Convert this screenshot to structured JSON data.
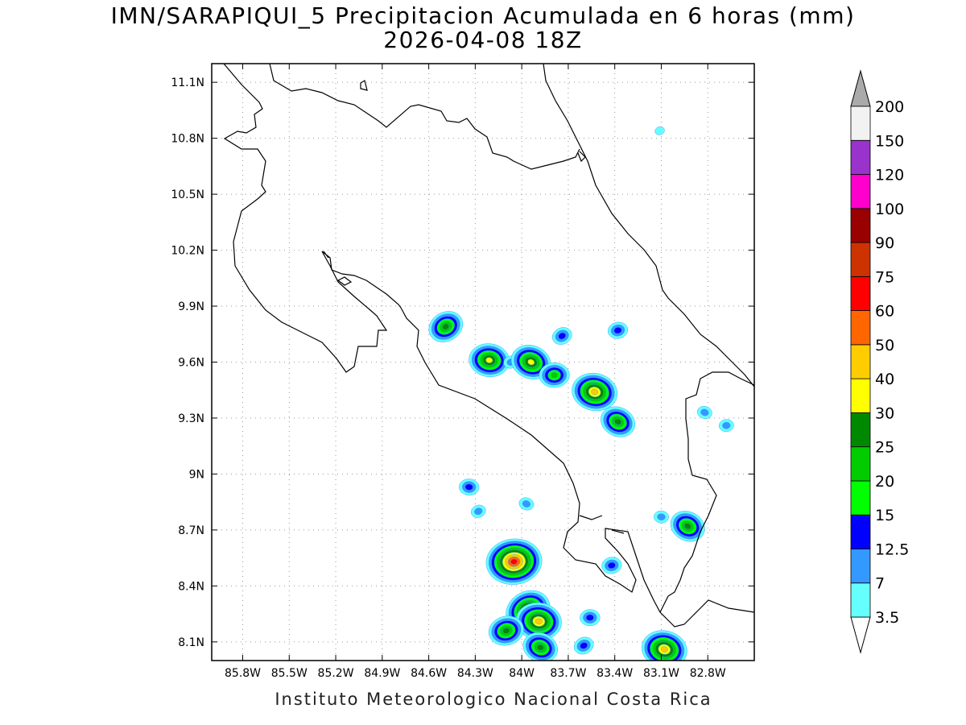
{
  "title": {
    "line1": "IMN/SARAPIQUI_5 Precipitacion Acumulada en 6 horas (mm)",
    "line2": "2026-04-08 18Z"
  },
  "footer": "Instituto Meteorologico Nacional Costa Rica",
  "map": {
    "lon_range": [
      -86.0,
      -82.5
    ],
    "lat_range": [
      8.0,
      11.2
    ],
    "lon_ticks": [
      {
        "value": -85.8,
        "label": "85.8W"
      },
      {
        "value": -85.5,
        "label": "85.5W"
      },
      {
        "value": -85.2,
        "label": "85.2W"
      },
      {
        "value": -84.9,
        "label": "84.9W"
      },
      {
        "value": -84.6,
        "label": "84.6W"
      },
      {
        "value": -84.3,
        "label": "84.3W"
      },
      {
        "value": -84.0,
        "label": "84W"
      },
      {
        "value": -83.7,
        "label": "83.7W"
      },
      {
        "value": -83.4,
        "label": "83.4W"
      },
      {
        "value": -83.1,
        "label": "83.1W"
      },
      {
        "value": -82.8,
        "label": "82.8W"
      }
    ],
    "lat_ticks": [
      {
        "value": 8.1,
        "label": "8.1N"
      },
      {
        "value": 8.4,
        "label": "8.4N"
      },
      {
        "value": 8.7,
        "label": "8.7N"
      },
      {
        "value": 9.0,
        "label": "9N"
      },
      {
        "value": 9.3,
        "label": "9.3N"
      },
      {
        "value": 9.6,
        "label": "9.6N"
      },
      {
        "value": 9.9,
        "label": "9.9N"
      },
      {
        "value": 10.2,
        "label": "10.2N"
      },
      {
        "value": 10.5,
        "label": "10.5N"
      },
      {
        "value": 10.8,
        "label": "10.8N"
      },
      {
        "value": 11.1,
        "label": "11.1N"
      }
    ],
    "gridlines": "dotted"
  },
  "legend": {
    "levels": [
      "3.5",
      "7",
      "12.5",
      "15",
      "20",
      "25",
      "30",
      "40",
      "50",
      "60",
      "75",
      "90",
      "100",
      "120",
      "150",
      "200"
    ],
    "colors": [
      "#66ffff",
      "#3399ff",
      "#0000ff",
      "#00ff00",
      "#00cc00",
      "#008800",
      "#ffff00",
      "#ffcc00",
      "#ff6600",
      "#ff0000",
      "#cc3300",
      "#990000",
      "#ff00cc",
      "#9933cc",
      "#f2f2f2",
      "#aaaaaa"
    ]
  },
  "precip_cells": [
    {
      "lon": -84.49,
      "lat": 9.79,
      "mm": 25
    },
    {
      "lon": -84.21,
      "lat": 9.61,
      "mm": 30
    },
    {
      "lon": -84.07,
      "lat": 9.6,
      "mm": 7
    },
    {
      "lon": -83.94,
      "lat": 9.6,
      "mm": 30
    },
    {
      "lon": -83.79,
      "lat": 9.53,
      "mm": 20
    },
    {
      "lon": -83.74,
      "lat": 9.74,
      "mm": 12.5
    },
    {
      "lon": -83.53,
      "lat": 9.44,
      "mm": 40
    },
    {
      "lon": -83.38,
      "lat": 9.77,
      "mm": 12.5
    },
    {
      "lon": -83.38,
      "lat": 9.28,
      "mm": 25
    },
    {
      "lon": -84.34,
      "lat": 8.93,
      "mm": 12.5
    },
    {
      "lon": -84.28,
      "lat": 8.8,
      "mm": 7
    },
    {
      "lon": -83.97,
      "lat": 8.84,
      "mm": 7
    },
    {
      "lon": -84.05,
      "lat": 8.53,
      "mm": 60
    },
    {
      "lon": -83.96,
      "lat": 8.27,
      "mm": 40
    },
    {
      "lon": -83.89,
      "lat": 8.21,
      "mm": 40
    },
    {
      "lon": -84.1,
      "lat": 8.16,
      "mm": 25
    },
    {
      "lon": -83.88,
      "lat": 8.07,
      "mm": 25
    },
    {
      "lon": -83.56,
      "lat": 8.23,
      "mm": 12.5
    },
    {
      "lon": -83.6,
      "lat": 8.08,
      "mm": 12.5
    },
    {
      "lon": -83.08,
      "lat": 8.06,
      "mm": 40
    },
    {
      "lon": -83.42,
      "lat": 8.51,
      "mm": 12.5
    },
    {
      "lon": -82.93,
      "lat": 8.72,
      "mm": 25
    },
    {
      "lon": -83.1,
      "lat": 8.77,
      "mm": 7
    },
    {
      "lon": -83.11,
      "lat": 10.84,
      "mm": 3.5
    },
    {
      "lon": -82.82,
      "lat": 9.33,
      "mm": 7
    },
    {
      "lon": -82.68,
      "lat": 9.26,
      "mm": 7
    }
  ]
}
